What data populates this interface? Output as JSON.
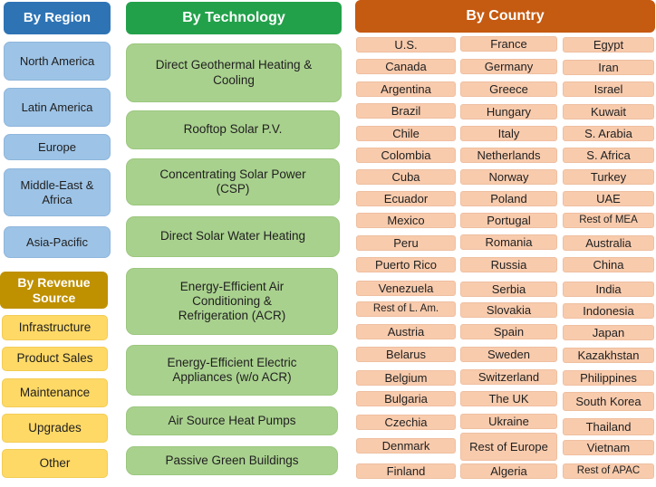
{
  "headers": {
    "region": "By Region",
    "technology": "By Technology",
    "country": "By Country",
    "revenue": "By Revenue Source"
  },
  "regions": [
    "North America",
    "Latin America",
    "Europe",
    "Middle-East & Africa",
    "Asia-Pacific"
  ],
  "technologies": [
    "Direct Geothermal Heating & Cooling",
    "Rooftop Solar P.V.",
    "Concentrating Solar Power (CSP)",
    "Direct Solar Water Heating",
    "Energy-Efficient Air Conditioning & Refrigeration (ACR)",
    "Energy-Efficient Electric Appliances (w/o ACR)",
    "Air Source Heat Pumps",
    "Passive Green Buildings"
  ],
  "revenue_sources": [
    "Infrastructure",
    "Product Sales",
    "Maintenance",
    "Upgrades",
    "Other"
  ],
  "countries": {
    "col1": [
      "U.S.",
      "Canada",
      "Argentina",
      "Brazil",
      "Chile",
      "Colombia",
      "Cuba",
      "Ecuador",
      "Mexico",
      "Peru",
      "Puerto Rico",
      "Venezuela",
      "Rest of L. Am.",
      "Austria",
      "Belarus",
      "Belgium",
      "Bulgaria",
      "Czechia",
      "Denmark",
      "Finland"
    ],
    "col2": [
      "France",
      "Germany",
      "Greece",
      "Hungary",
      "Italy",
      "Netherlands",
      "Norway",
      "Poland",
      "Portugal",
      "Romania",
      "Russia",
      "Serbia",
      "Slovakia",
      "Spain",
      "Sweden",
      "Switzerland",
      "The UK",
      "Ukraine",
      "Rest of Europe",
      "Algeria"
    ],
    "col3": [
      "Egypt",
      "Iran",
      "Israel",
      "Kuwait",
      "S. Arabia",
      "S. Africa",
      "Turkey",
      "UAE",
      "Rest of MEA",
      "Australia",
      "China",
      "India",
      "Indonesia",
      "Japan",
      "Kazakhstan",
      "Philippines",
      "South Korea",
      "Thailand",
      "Vietnam",
      "Rest of APAC"
    ]
  },
  "colors": {
    "region_header": "#2e74b5",
    "region_box": "#9dc3e6",
    "technology_header": "#22a14a",
    "technology_box": "#a9d18e",
    "country_header": "#c55a11",
    "country_box": "#f8cbad",
    "revenue_header": "#bf9000",
    "revenue_box": "#ffd966"
  }
}
